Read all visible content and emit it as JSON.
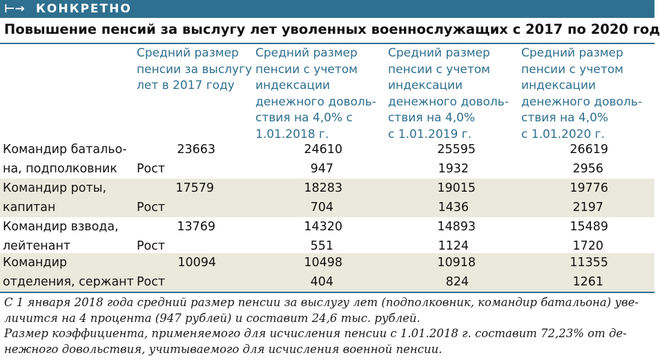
{
  "header": {
    "arrow_glyph": "⊢→",
    "tag": "КОНКРЕТНО"
  },
  "title": "Повышение пенсий за выслугу лет уволенных военнослужащих с 2017 по 2020 год",
  "columns": [
    "Средний размер\nпенсии за выслугу\nлет в 2017 году",
    "Средний размер\nпенсии с учетом\nиндексации\nденежного доволь-\nствия на 4,0% с\n1.01.2018 г.",
    "Средний размер\nпенсии с учетом\nиндексации\nденежного доволь-\nствия на 4,0%\nс 1.01.2019 г.",
    "Средний размер\nпенсии с учетом\nиндексации\nденежного доволь-\nствия на 4,0%\nс 1.01.2020 г."
  ],
  "rows": [
    {
      "rank_line1": "Командир батальо-",
      "rank_line2": "на, подполковник",
      "growth_label": "Рост",
      "v2017": "23663",
      "v2018": "24610",
      "v2019": "25595",
      "v2020": "26619",
      "g2018": "947",
      "g2019": "1932",
      "g2020": "2956"
    },
    {
      "rank_line1": "Командир роты,",
      "rank_line2": "капитан",
      "growth_label": "Рост",
      "v2017": "17579",
      "v2018": "18283",
      "v2019": "19015",
      "v2020": "19776",
      "g2018": "704",
      "g2019": "1436",
      "g2020": "2197"
    },
    {
      "rank_line1": "Командир взвода,",
      "rank_line2": "лейтенант",
      "growth_label": "Рост",
      "v2017": "13769",
      "v2018": "14320",
      "v2019": "14893",
      "v2020": "15489",
      "g2018": "551",
      "g2019": "1124",
      "g2020": "1720"
    },
    {
      "rank_line1": "Командир",
      "rank_line2": "отделения, сержант",
      "growth_label": "Рост",
      "v2017": "10094",
      "v2018": "10498",
      "v2019": "10918",
      "v2020": "11355",
      "g2018": "404",
      "g2019": "824",
      "g2020": "1261"
    }
  ],
  "notes": [
    "С 1 января 2018 года средний размер пенсии за выслугу лет (подполковник, командир батальона) уве-",
    "личится на 4 процента (947 рублей) и составит 24,6 тыс. рублей.",
    "Размер коэффициента, применяемого для исчисления пенсии с 1.01.2018 г. составит 72,23% от де-",
    "нежного довольствия, учитываемого для исчисления военной пенсии."
  ]
}
